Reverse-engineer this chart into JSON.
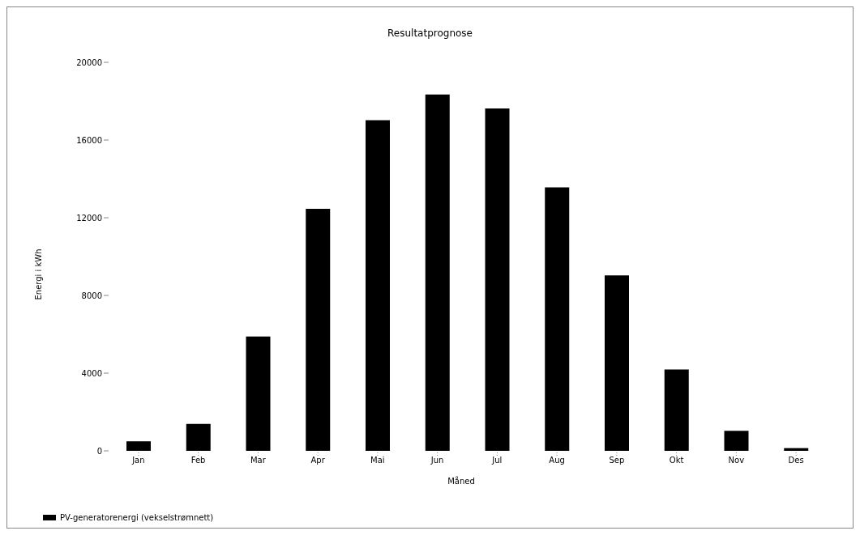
{
  "chart_data": {
    "type": "bar",
    "title": "Resultatprognose",
    "xlabel": "Måned",
    "ylabel": "Energi i kWh",
    "categories": [
      "Jan",
      "Feb",
      "Mar",
      "Apr",
      "Mai",
      "Jun",
      "Jul",
      "Aug",
      "Sep",
      "Okt",
      "Nov",
      "Des"
    ],
    "series": [
      {
        "name": "PV-generatorenergi (vekselstrømnett)",
        "color": "#000000",
        "values": [
          490,
          1390,
          5890,
          12460,
          17020,
          18340,
          17620,
          13560,
          9030,
          4190,
          1030,
          140
        ]
      }
    ],
    "ylim": [
      0,
      20000
    ],
    "yticks": [
      0,
      4000,
      8000,
      12000,
      16000,
      20000
    ],
    "grid": false,
    "legend": "bottom left"
  }
}
